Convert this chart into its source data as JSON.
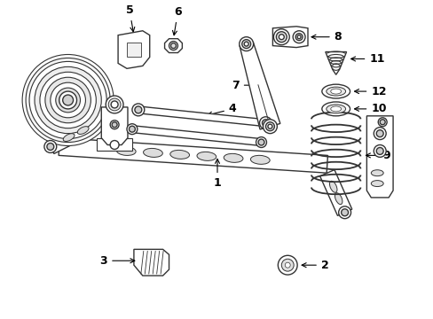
{
  "bg_color": "#ffffff",
  "lc": "#333333",
  "figsize": [
    4.89,
    3.6
  ],
  "dpi": 100
}
